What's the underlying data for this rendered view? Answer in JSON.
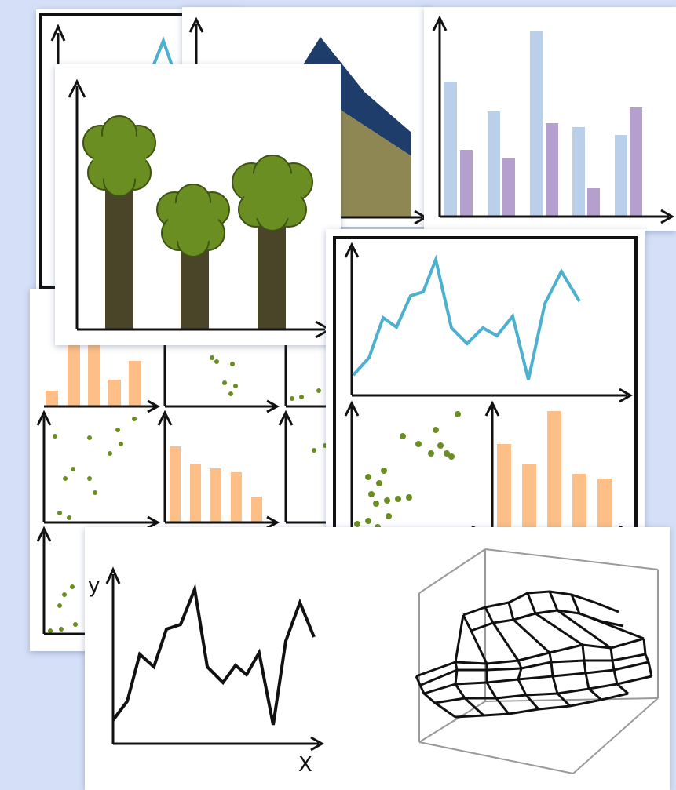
{
  "colors": {
    "background": "#d5e0f8",
    "line_blue": "#4cb0cf",
    "orange_bar": "#fdbf87",
    "light_blue_bar": "#bad0ea",
    "purple_bar": "#b49fcf",
    "scatter_green": "#6b8e23",
    "tree_trunk": "#4a4428",
    "tree_canopy": "#6b8e23",
    "area_navy": "#1e3d6b",
    "area_olive": "#8f8753"
  },
  "icons": [
    "line-chart-icon",
    "area-chart-icon",
    "grouped-bar-chart-icon",
    "tree-bar-chart-icon",
    "small-multiples-icon",
    "dashboard-chart-icon",
    "xy-line-chart-icon",
    "wireframe-surface-icon"
  ],
  "labels": {
    "y_axis": "y",
    "x_axis": "X"
  }
}
